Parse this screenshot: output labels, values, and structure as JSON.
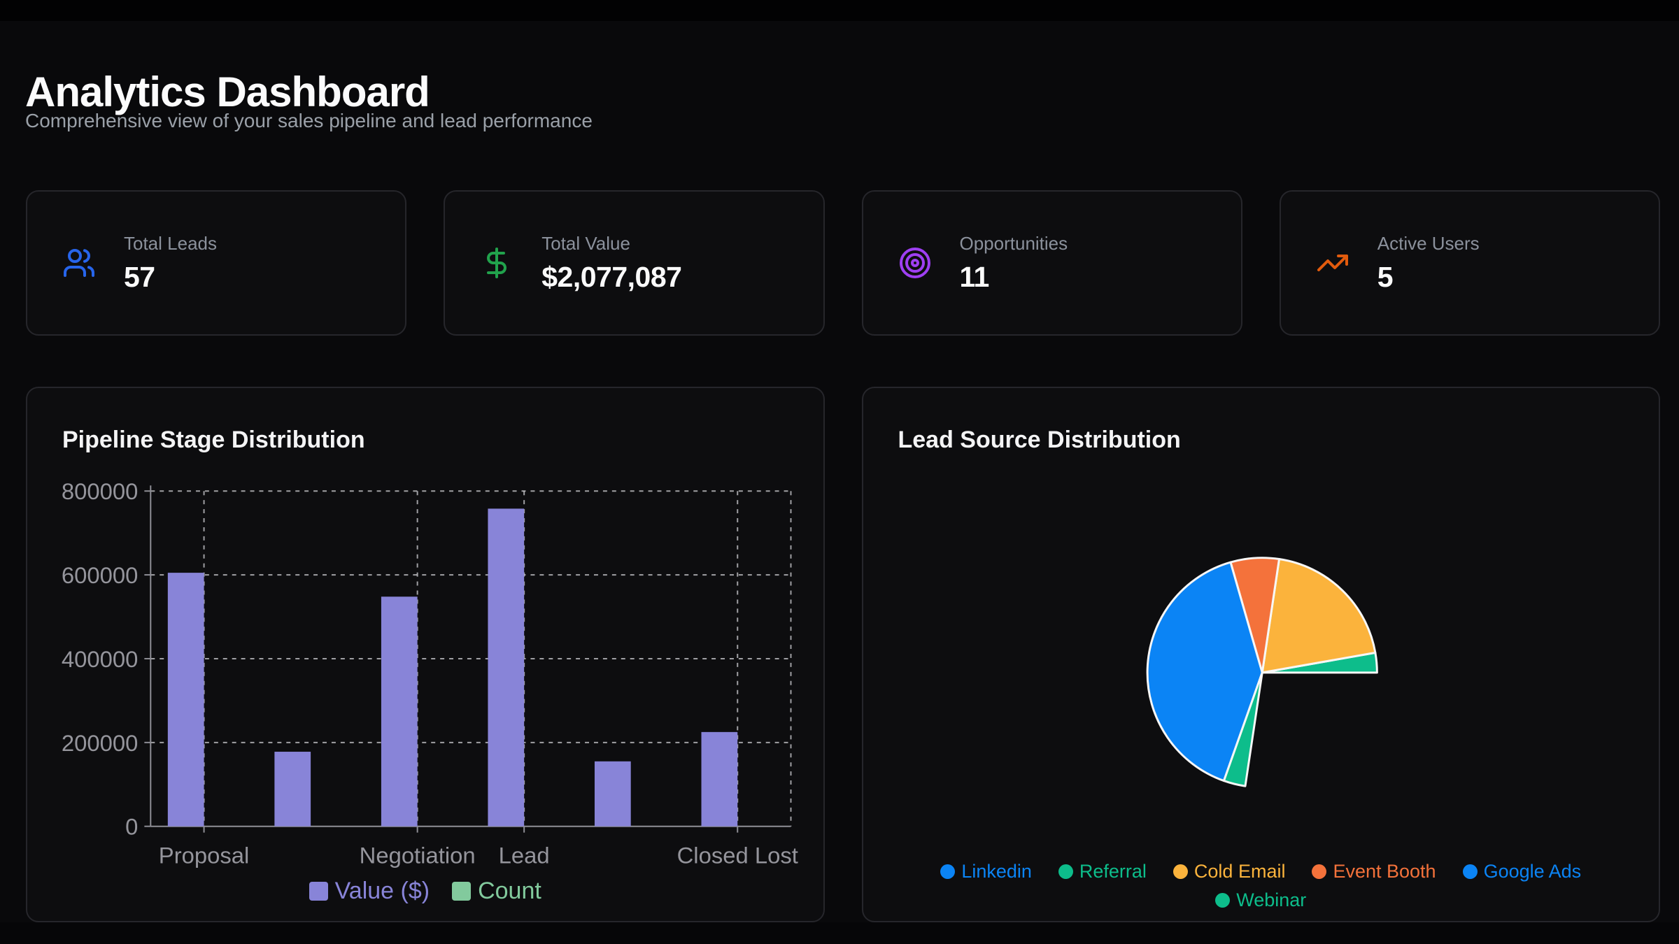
{
  "page": {
    "title": "Analytics Dashboard",
    "subtitle": "Comprehensive view of your sales pipeline and lead performance"
  },
  "stats": [
    {
      "label": "Total Leads",
      "value": "57",
      "icon": "users-icon",
      "icon_color": "#2765eb"
    },
    {
      "label": "Total Value",
      "value": "$2,077,087",
      "icon": "dollar-sign-icon",
      "icon_color": "#21a24c"
    },
    {
      "label": "Opportunities",
      "value": "11",
      "icon": "target-icon",
      "icon_color": "#9e3ff2"
    },
    {
      "label": "Active Users",
      "value": "5",
      "icon": "trending-up-icon",
      "icon_color": "#e25b0d"
    }
  ],
  "chart_data": [
    {
      "id": "pipeline_stage_distribution",
      "type": "bar",
      "title": "Pipeline Stage Distribution",
      "bar_count": 6,
      "visible_tick_labels": [
        "Proposal",
        "Negotiation",
        "Lead",
        "Closed Lost"
      ],
      "visible_tick_indices": [
        0,
        2,
        3,
        5
      ],
      "series": [
        {
          "name": "Value ($)",
          "color": "#8884d8",
          "values": [
            605000,
            178000,
            548000,
            758000,
            155000,
            225000
          ]
        },
        {
          "name": "Count",
          "color": "#82ca9d",
          "values": [],
          "bars_visible": false
        }
      ],
      "ylim": [
        0,
        800000
      ],
      "yticks": [
        0,
        200000,
        400000,
        600000,
        800000
      ],
      "grid": "dashed",
      "legend_position": "bottom",
      "legend": [
        {
          "label": "Value ($)",
          "color": "#8884d8"
        },
        {
          "label": "Count",
          "color": "#82ca9d"
        }
      ]
    },
    {
      "id": "lead_source_distribution",
      "type": "pie",
      "title": "Lead Source Distribution",
      "angle_convention": "degrees counterclockwise from 3 o'clock",
      "slices": [
        {
          "label": "Referral",
          "color": "#0dbd8b",
          "start_deg": 0,
          "end_deg": 10,
          "percent": 2.8
        },
        {
          "label": "Cold Email",
          "color": "#fbb33c",
          "start_deg": 10,
          "end_deg": 81.5,
          "percent": 19.9
        },
        {
          "label": "Event Booth",
          "color": "#f4723b",
          "start_deg": 81.5,
          "end_deg": 106,
          "percent": 6.8
        },
        {
          "label": "Linkedin",
          "color": "#0b84f5",
          "start_deg": 106,
          "end_deg": 250.5,
          "percent": 40.1
        },
        {
          "label": "Webinar",
          "color": "#0dbd8b",
          "start_deg": 250.5,
          "end_deg": 261.5,
          "percent": 3.1
        },
        {
          "label": "Google Ads",
          "color": "none",
          "start_deg": 261.5,
          "end_deg": 360,
          "percent": 27.4
        }
      ],
      "stroke_color": "#f7f7f7",
      "legend_rows": [
        5,
        1
      ],
      "legend": [
        {
          "label": "Linkedin",
          "color": "#0b84f5"
        },
        {
          "label": "Referral",
          "color": "#0dbd8b"
        },
        {
          "label": "Cold Email",
          "color": "#fbb33c"
        },
        {
          "label": "Event Booth",
          "color": "#f4723b"
        },
        {
          "label": "Google Ads",
          "color": "#0b84f5"
        },
        {
          "label": "Webinar",
          "color": "#0dbd8b"
        }
      ]
    }
  ]
}
